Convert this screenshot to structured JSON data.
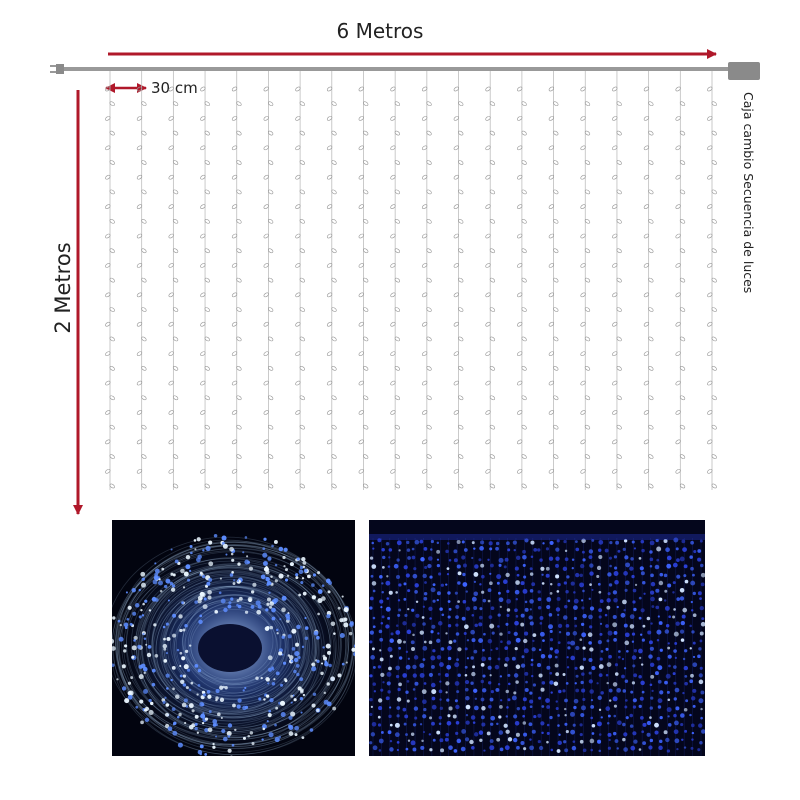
{
  "labels": {
    "width": "6 Metros",
    "spacing": "30 cm",
    "height": "2 Metros",
    "controller": "Caja cambio Secuencia de luces"
  },
  "colors": {
    "arrow": "#b0182a",
    "wire": "#999999",
    "controller_box": "#8a8a8a",
    "led_blue": "#3a6bff",
    "led_white": "#dff0ff"
  },
  "illustration": {
    "strand_count": 20,
    "bulbs_per_strand": 28
  },
  "photos": [
    {
      "name": "coiled-light-string-photo"
    },
    {
      "name": "curtain-lights-lit-photo"
    }
  ]
}
